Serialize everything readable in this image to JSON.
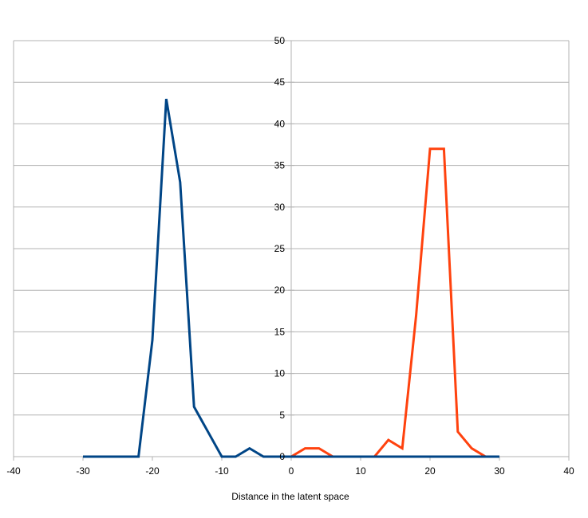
{
  "chart_data": {
    "type": "line",
    "title": "",
    "xlabel": "Distance in the latent space",
    "ylabel": "",
    "xlim": [
      -40,
      40
    ],
    "ylim": [
      0,
      50
    ],
    "x_ticks": [
      -40,
      -30,
      -20,
      -10,
      0,
      10,
      20,
      30,
      40
    ],
    "y_ticks": [
      5,
      10,
      15,
      20,
      25,
      30,
      35,
      40,
      45,
      50
    ],
    "grid": "horizontal",
    "legend": "none",
    "series": [
      {
        "color": "#ff420e",
        "x": [
          0,
          2,
          4,
          6,
          8,
          10,
          12,
          14,
          16,
          18,
          20,
          22,
          24,
          26,
          28,
          30
        ],
        "values": [
          0,
          1,
          1,
          0,
          0,
          0,
          0,
          2,
          1,
          17,
          37,
          37,
          3,
          1,
          0,
          0
        ]
      },
      {
        "color": "#004586",
        "x": [
          -30,
          -28,
          -26,
          -24,
          -22,
          -20,
          -18,
          -16,
          -14,
          -12,
          -10,
          -8,
          -6,
          -4,
          -2,
          0,
          2,
          4,
          6,
          8,
          10,
          12,
          14,
          16,
          18,
          20,
          22,
          24,
          26,
          28,
          30
        ],
        "values": [
          0,
          0,
          0,
          0,
          0,
          14,
          43,
          33,
          6,
          3,
          0,
          0,
          1,
          0,
          0,
          0,
          0,
          0,
          0,
          0,
          0,
          0,
          0,
          0,
          0,
          0,
          0,
          0,
          0,
          0,
          0
        ]
      }
    ],
    "colors": {
      "grid": "#b3b3b3",
      "axis": "#b3b3b3"
    }
  }
}
